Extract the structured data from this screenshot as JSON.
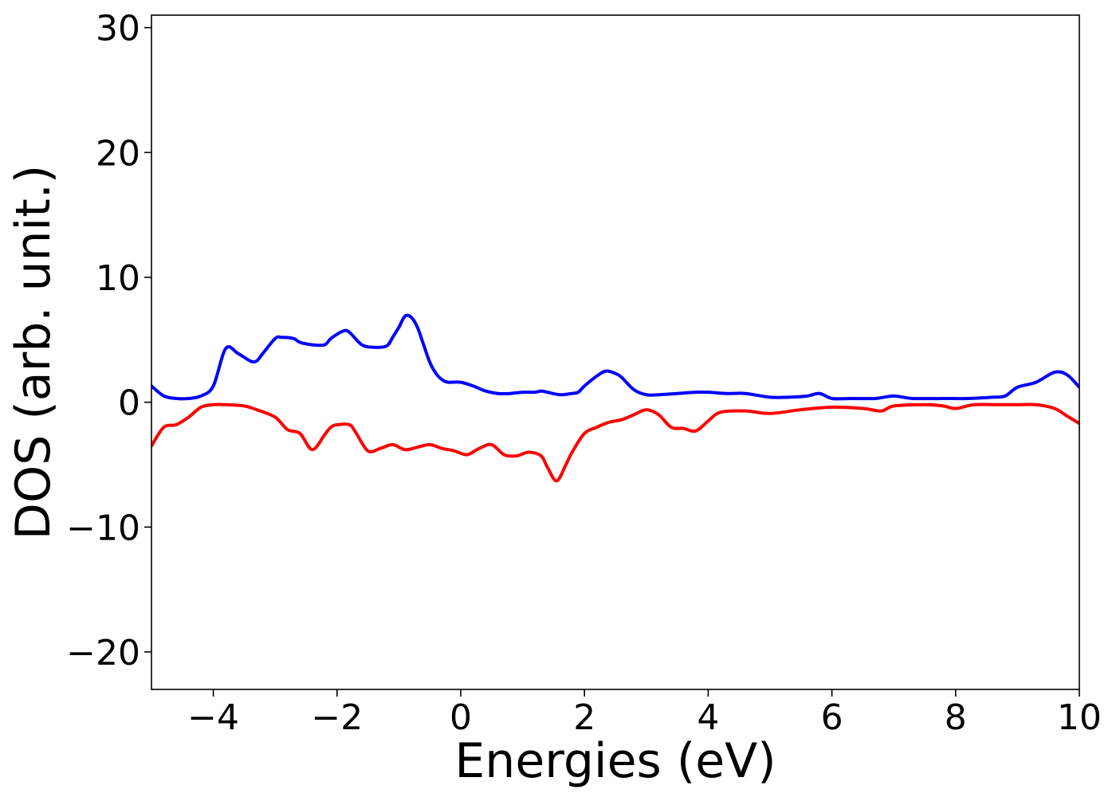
{
  "chart_data": {
    "type": "line",
    "title": "",
    "xlabel": "Energies (eV)",
    "ylabel": "DOS (arb. unit.)",
    "xlim": [
      -5,
      10
    ],
    "ylim": [
      -23,
      31
    ],
    "xticks": [
      -4,
      -2,
      0,
      2,
      4,
      6,
      8,
      10
    ],
    "xtick_labels": [
      "−4",
      "−2",
      "0",
      "2",
      "4",
      "6",
      "8",
      "10"
    ],
    "yticks": [
      -20,
      -10,
      0,
      10,
      20,
      30
    ],
    "ytick_labels": [
      "−20",
      "−10",
      "0",
      "10",
      "20",
      "30"
    ],
    "grid": false,
    "legend": "none",
    "series": [
      {
        "color": "#0000ff",
        "x": [
          -5.0,
          -4.8,
          -4.6,
          -4.4,
          -4.2,
          -4.0,
          -3.8,
          -3.6,
          -3.4,
          -3.3,
          -3.2,
          -3.0,
          -2.9,
          -2.7,
          -2.6,
          -2.4,
          -2.2,
          -2.1,
          -1.9,
          -1.8,
          -1.6,
          -1.4,
          -1.2,
          -1.1,
          -1.0,
          -0.9,
          -0.8,
          -0.7,
          -0.6,
          -0.5,
          -0.4,
          -0.3,
          -0.2,
          0.0,
          0.2,
          0.4,
          0.6,
          0.8,
          1.0,
          1.2,
          1.3,
          1.4,
          1.6,
          1.8,
          1.9,
          2.0,
          2.2,
          2.35,
          2.5,
          2.6,
          2.8,
          3.0,
          3.2,
          3.5,
          3.8,
          4.0,
          4.3,
          4.6,
          5.0,
          5.3,
          5.6,
          5.8,
          6.0,
          6.3,
          6.7,
          7.0,
          7.3,
          7.8,
          8.2,
          8.6,
          8.8,
          9.0,
          9.3,
          9.6,
          9.8,
          10.0
        ],
        "y": [
          1.3,
          0.5,
          0.3,
          0.3,
          0.5,
          1.3,
          4.3,
          3.9,
          3.3,
          3.3,
          3.9,
          5.1,
          5.2,
          5.1,
          4.8,
          4.6,
          4.6,
          5.1,
          5.7,
          5.6,
          4.6,
          4.4,
          4.5,
          5.2,
          6.0,
          6.9,
          6.8,
          6.0,
          4.6,
          3.2,
          2.3,
          1.8,
          1.6,
          1.6,
          1.3,
          0.9,
          0.7,
          0.7,
          0.8,
          0.8,
          0.9,
          0.8,
          0.6,
          0.7,
          0.8,
          1.3,
          2.1,
          2.5,
          2.3,
          2.0,
          1.0,
          0.6,
          0.6,
          0.7,
          0.8,
          0.8,
          0.7,
          0.7,
          0.4,
          0.4,
          0.5,
          0.7,
          0.3,
          0.3,
          0.3,
          0.5,
          0.3,
          0.3,
          0.3,
          0.4,
          0.5,
          1.2,
          1.6,
          2.4,
          2.2,
          1.2
        ]
      },
      {
        "color": "#ff0000",
        "x": [
          -5.0,
          -4.8,
          -4.6,
          -4.4,
          -4.2,
          -4.0,
          -3.8,
          -3.5,
          -3.3,
          -3.0,
          -2.8,
          -2.6,
          -2.4,
          -2.2,
          -2.1,
          -2.0,
          -1.8,
          -1.7,
          -1.5,
          -1.3,
          -1.1,
          -0.9,
          -0.7,
          -0.5,
          -0.3,
          -0.1,
          0.1,
          0.3,
          0.5,
          0.7,
          0.9,
          1.1,
          1.3,
          1.4,
          1.55,
          1.7,
          1.8,
          2.0,
          2.2,
          2.4,
          2.6,
          2.8,
          3.0,
          3.2,
          3.4,
          3.6,
          3.8,
          4.0,
          4.2,
          4.6,
          5.0,
          5.5,
          6.0,
          6.5,
          6.8,
          7.0,
          7.5,
          7.8,
          8.0,
          8.3,
          8.7,
          9.0,
          9.3,
          9.6,
          9.8,
          10.0
        ],
        "y": [
          -3.5,
          -2.0,
          -1.8,
          -1.2,
          -0.4,
          -0.2,
          -0.2,
          -0.3,
          -0.6,
          -1.2,
          -2.2,
          -2.5,
          -3.8,
          -2.6,
          -2.0,
          -1.8,
          -1.8,
          -2.4,
          -3.9,
          -3.7,
          -3.4,
          -3.8,
          -3.6,
          -3.4,
          -3.7,
          -3.9,
          -4.2,
          -3.7,
          -3.4,
          -4.2,
          -4.3,
          -4.0,
          -4.3,
          -5.2,
          -6.3,
          -5.0,
          -4.0,
          -2.5,
          -2.0,
          -1.6,
          -1.4,
          -1.0,
          -0.6,
          -1.0,
          -2.0,
          -2.1,
          -2.3,
          -1.5,
          -0.8,
          -0.7,
          -0.9,
          -0.6,
          -0.4,
          -0.5,
          -0.7,
          -0.3,
          -0.2,
          -0.3,
          -0.5,
          -0.2,
          -0.2,
          -0.2,
          -0.2,
          -0.5,
          -1.1,
          -1.7
        ]
      }
    ]
  }
}
